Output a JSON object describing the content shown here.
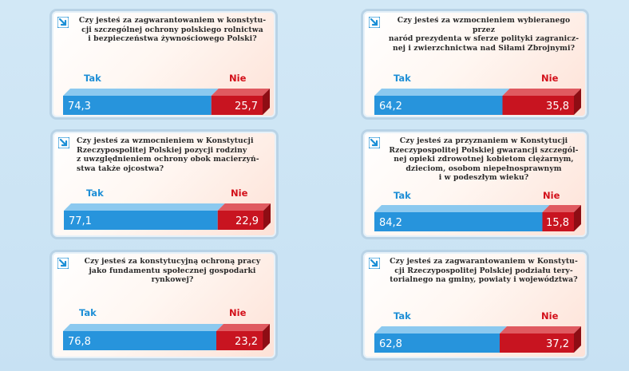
{
  "labels": {
    "yes": "Tak",
    "no": "Nie"
  },
  "colors": {
    "yes": "#2794dc",
    "no": "#c81420"
  },
  "chart_data": [
    {
      "type": "bar",
      "title": "Czy jesteś za zagwarantowaniem  w konstytu-\ncji szczególnej ochrony polskiego rolnictwa\ni bezpieczeństwa żywnościowego Polski?",
      "categories": [
        "Tak",
        "Nie"
      ],
      "values": [
        74.3,
        25.7
      ],
      "value_labels": [
        "74,3",
        "25,7"
      ]
    },
    {
      "type": "bar",
      "title": "Czy jesteś za wzmocnieniem w Konstytucji\nRzeczypospolitej Polskiej pozycji rodziny\nz uwzględnieniem ochrony obok macierzyń-\nstwa także ojcostwa?",
      "categories": [
        "Tak",
        "Nie"
      ],
      "values": [
        77.1,
        22.9
      ],
      "value_labels": [
        "77,1",
        "22,9"
      ]
    },
    {
      "type": "bar",
      "title": "Czy jesteś za konstytucyjną ochroną pracy\njako fundamentu społecznej gospodarki\nrynkowej?",
      "categories": [
        "Tak",
        "Nie"
      ],
      "values": [
        76.8,
        23.2
      ],
      "value_labels": [
        "76,8",
        "23,2"
      ]
    },
    {
      "type": "bar",
      "title": "Czy jesteś za wzmocnieniem wybieranego przez\nnaród prezydenta w sferze polityki zagranicz-\nnej i zwierzchnictwa nad Siłami Zbrojnymi?",
      "categories": [
        "Tak",
        "Nie"
      ],
      "values": [
        64.2,
        35.8
      ],
      "value_labels": [
        "64,2",
        "35,8"
      ]
    },
    {
      "type": "bar",
      "title": "Czy jesteś za przyznaniem w Konstytucji\nRzeczypospolitej Polskiej gwarancji szczegól-\nnej opieki zdrowotnej kobietom ciężarnym,\ndzieciom, osobom niepełnosprawnym\ni w podeszłym wieku?",
      "categories": [
        "Tak",
        "Nie"
      ],
      "values": [
        84.2,
        15.8
      ],
      "value_labels": [
        "84,2",
        "15,8"
      ]
    },
    {
      "type": "bar",
      "title": "Czy jesteś za zagwarantowaniem w Konstytu-\ncji Rzeczypospolitej Polskiej podziału tery-\ntorialnego na gminy, powiaty i województwa?",
      "categories": [
        "Tak",
        "Nie"
      ],
      "values": [
        62.8,
        37.2
      ],
      "value_labels": [
        "62,8",
        "37,2"
      ]
    }
  ]
}
